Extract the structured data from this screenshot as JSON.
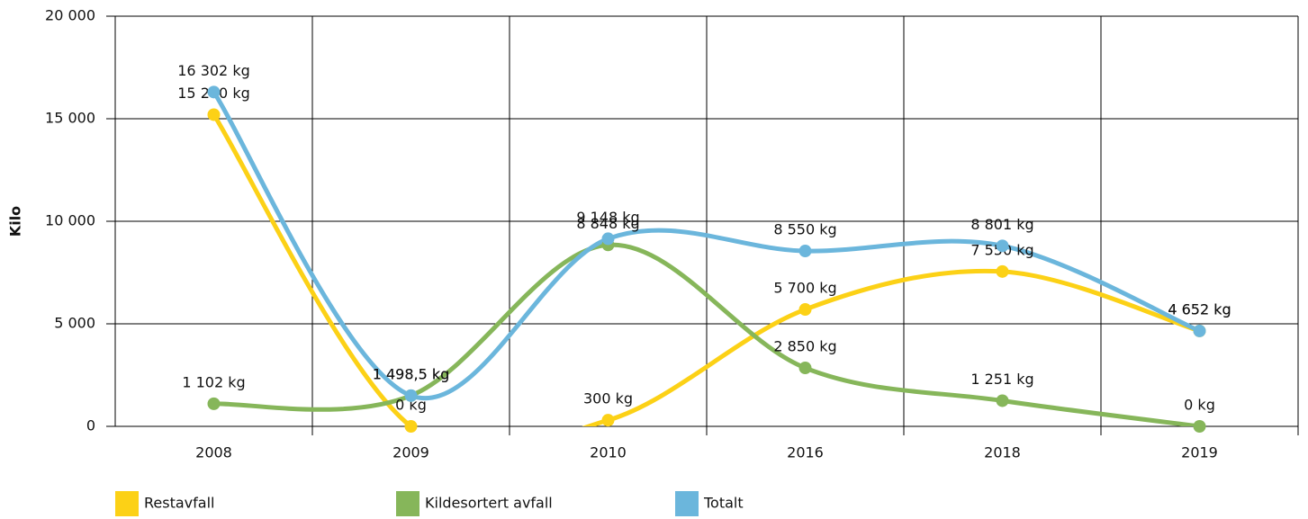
{
  "chart_data": {
    "type": "line",
    "y_label": "Kilo",
    "categories": [
      "2008",
      "2009",
      "2010",
      "2016",
      "2018",
      "2019"
    ],
    "series": [
      {
        "name": "Restavfall",
        "color": "#fcd116",
        "values": [
          15200,
          0,
          300,
          5700,
          7550,
          4652
        ],
        "value_labels": [
          "15 200 kg",
          "0 kg",
          "300 kg",
          "5 700 kg",
          "7 550 kg",
          "4 652 kg"
        ]
      },
      {
        "name": "Kildesortert avfall",
        "color": "#86b65a",
        "values": [
          1102,
          1498.5,
          8848,
          2850,
          1251,
          0
        ],
        "value_labels": [
          "1 102 kg",
          "1 498,5 kg",
          "8 848 kg",
          "2 850 kg",
          "1 251 kg",
          "0 kg"
        ]
      },
      {
        "name": "Totalt",
        "color": "#6bb6dc",
        "values": [
          16302,
          1498.5,
          9148,
          8550,
          8801,
          4652
        ],
        "value_labels": [
          "16 302 kg",
          "1 498,5 kg",
          "9 148 kg",
          "8 550 kg",
          "8 801 kg",
          "4 652 kg"
        ]
      }
    ],
    "ylim": [
      0,
      20000
    ],
    "yticks": [
      0,
      {
        "value": 5000,
        "label": "5 000"
      },
      {
        "value": 10000,
        "label": "10 000"
      },
      {
        "value": 15000,
        "label": "15 000"
      },
      {
        "value": 20000,
        "label": "20 000"
      }
    ],
    "grid": true,
    "legend": "bottom"
  }
}
